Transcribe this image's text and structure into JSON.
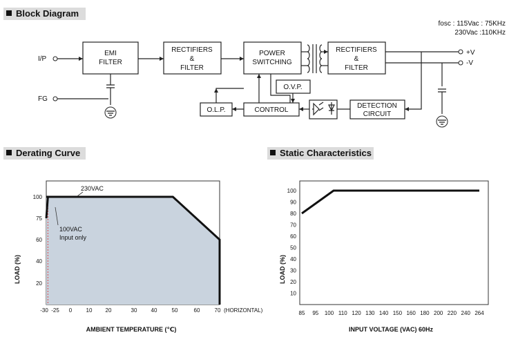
{
  "sections": {
    "block_diagram": "Block Diagram",
    "derating_curve": "Derating Curve",
    "static_characteristics": "Static Characteristics"
  },
  "block_diagram": {
    "fosc_line1": "fosc : 115Vac : 75KHz",
    "fosc_line2": "230Vac :110KHz",
    "terminals": {
      "input": "I/P",
      "fg": "FG",
      "vplus": "+V",
      "vminus": "-V"
    },
    "blocks": {
      "emi": [
        "EMI",
        "FILTER"
      ],
      "rect1": [
        "RECTIFIERS",
        "&",
        "FILTER"
      ],
      "power": [
        "POWER",
        "SWITCHING"
      ],
      "rect2": [
        "RECTIFIERS",
        "&",
        "FILTER"
      ],
      "ovp": "O.V.P.",
      "olp": "O.L.P.",
      "control": "CONTROL",
      "detection": [
        "DETECTION",
        "CIRCUIT"
      ]
    }
  },
  "chart_data": [
    {
      "type": "area",
      "xlabel": "AMBIENT TEMPERATURE (℃)",
      "ylabel": "LOAD (%)",
      "x_note": "(HORIZONTAL)",
      "x_ticks": [
        -30,
        -25,
        0,
        10,
        20,
        30,
        40,
        50,
        60,
        70
      ],
      "y_ticks": [
        20,
        40,
        60,
        75,
        100
      ],
      "xlim": [
        -30,
        70
      ],
      "ylim": [
        0,
        100
      ],
      "series": [
        {
          "name": "230VAC",
          "x": [
            -30,
            50,
            70,
            70
          ],
          "y": [
            100,
            100,
            60,
            0
          ]
        },
        {
          "name": "100VAC Input only",
          "x": [
            -30,
            -25
          ],
          "y": [
            75,
            100
          ]
        }
      ],
      "annotations": {
        "a230": "230VAC",
        "a100_1": "100VAC",
        "a100_2": "Input only"
      }
    },
    {
      "type": "line",
      "xlabel": "INPUT VOLTAGE (VAC) 60Hz",
      "ylabel": "LOAD (%)",
      "x_ticks": [
        85,
        95,
        100,
        110,
        120,
        130,
        140,
        150,
        160,
        170,
        180,
        200,
        220,
        240,
        264
      ],
      "y_ticks": [
        10,
        20,
        30,
        40,
        50,
        60,
        70,
        80,
        90,
        100
      ],
      "ylim": [
        0,
        100
      ],
      "series": [
        {
          "x": [
            85,
            100,
            264
          ],
          "y": [
            80,
            100,
            100
          ]
        }
      ]
    }
  ]
}
